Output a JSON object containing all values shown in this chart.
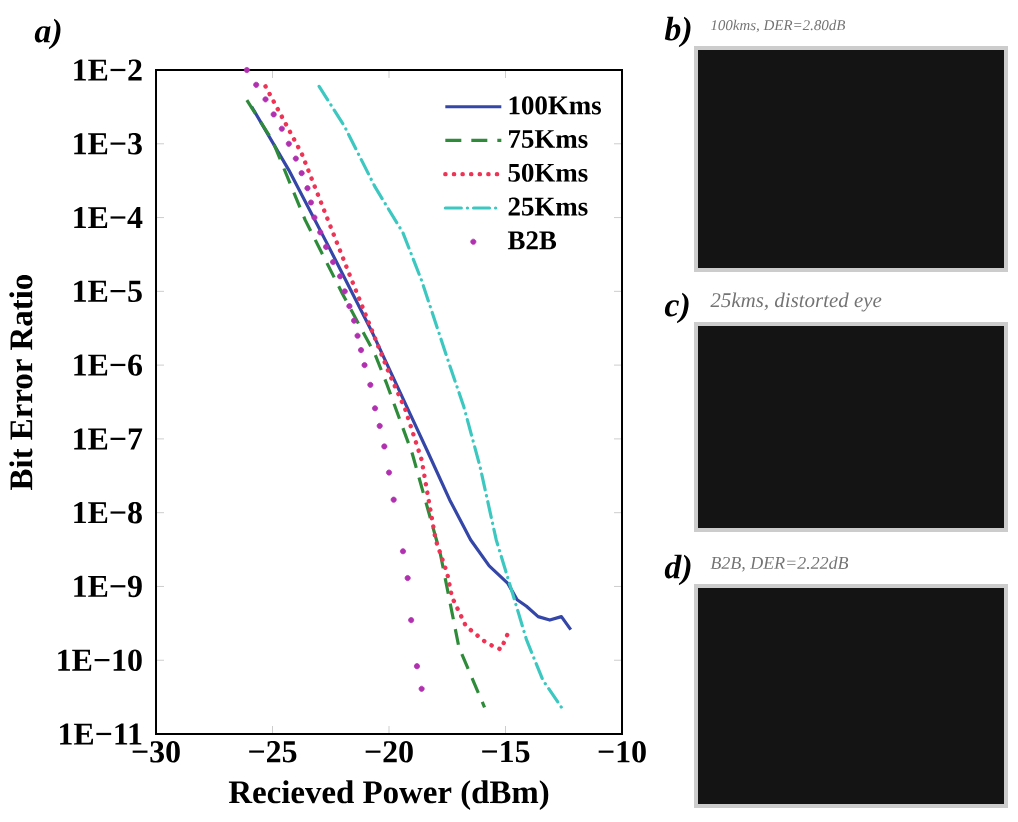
{
  "chart_data": {
    "type": "line",
    "xlabel": "Recieved Power (dBm)",
    "ylabel": "Bit Error Ratio",
    "annotations": [
      "a)",
      "b)",
      "100kms, DER=2.80dB",
      "c)",
      "25kms, distorted eye",
      "d)",
      "B2B, DER=2.22dB"
    ],
    "xlim": [
      -30,
      -10
    ],
    "xticks": [
      {
        "value": -30,
        "label": "−30"
      },
      {
        "value": -25,
        "label": "−25"
      },
      {
        "value": -20,
        "label": "−20"
      },
      {
        "value": -15,
        "label": "−15"
      },
      {
        "value": -10,
        "label": "−10"
      }
    ],
    "ylim": [
      1e-11,
      0.01
    ],
    "yticks": [
      {
        "value": 1e-11,
        "label": "1E−11"
      },
      {
        "value": 1e-10,
        "label": "1E−10"
      },
      {
        "value": 1e-09,
        "label": "1E−9"
      },
      {
        "value": 1e-08,
        "label": "1E−8"
      },
      {
        "value": 1e-07,
        "label": "1E−7"
      },
      {
        "value": 1e-06,
        "label": "1E−6"
      },
      {
        "value": 1e-05,
        "label": "1E−5"
      },
      {
        "value": 0.0001,
        "label": "1E−4"
      },
      {
        "value": 0.001,
        "label": "1E−3"
      },
      {
        "value": 0.01,
        "label": "1E−2"
      }
    ],
    "log": "y",
    "legend": "top right",
    "series": [
      {
        "name": "100Kms",
        "color": "#3446a8",
        "line_style": "solid",
        "marker": "none",
        "x": [
          -25.9,
          -24.3,
          -22.6,
          -20.7,
          -19.1,
          -18.3,
          -17.4,
          -16.5,
          -15.7,
          -14.9,
          -14.5,
          -14.1,
          -13.6,
          -13.1,
          -12.6,
          -12.2
        ],
        "values": [
          0.0032,
          0.00044,
          4.1e-05,
          2.7e-06,
          2.2e-07,
          6.3e-08,
          1.5e-08,
          4.3e-09,
          1.9e-09,
          1.1e-09,
          6.6e-10,
          5.4e-10,
          3.9e-10,
          3.5e-10,
          3.9e-10,
          2.6e-10
        ]
      },
      {
        "name": "75Kms",
        "color": "#2e8b3a",
        "line_style": "dashed",
        "marker": "none",
        "x": [
          -26.1,
          -25.0,
          -23.6,
          -22.0,
          -20.6,
          -20.1,
          -19.0,
          -17.8,
          -17.0,
          -15.9
        ],
        "values": [
          0.0039,
          0.0011,
          9.3e-05,
          9.3e-06,
          1.4e-06,
          5.6e-07,
          6.3e-08,
          2.8e-09,
          1.5e-10,
          2.3e-11
        ]
      },
      {
        "name": "50Kms",
        "color": "#ee3355",
        "line_style": "dotted",
        "marker": "none",
        "x": [
          -25.3,
          -23.75,
          -21.7,
          -20.0,
          -19.3,
          -18.6,
          -18.0,
          -17.5,
          -17.3,
          -16.7,
          -15.8,
          -15.2,
          -14.9
        ],
        "values": [
          0.006,
          0.00074,
          1.7e-05,
          7.8e-07,
          2.5e-07,
          5.2e-08,
          4.3e-09,
          1.5e-09,
          7.2e-10,
          2.9e-10,
          1.7e-10,
          1.4e-10,
          2.3e-10
        ]
      },
      {
        "name": "25Kms",
        "color": "#3cc8c0",
        "line_style": "dashdot",
        "marker": "none",
        "x": [
          -23.0,
          -21.9,
          -20.6,
          -19.4,
          -18.6,
          -17.4,
          -16.8,
          -16.1,
          -15.4,
          -14.7,
          -14.1,
          -13.4,
          -12.6
        ],
        "values": [
          0.006,
          0.0017,
          0.00026,
          6.2e-05,
          1.4e-05,
          1e-06,
          2.8e-07,
          4.3e-08,
          4.3e-09,
          8.1e-10,
          1.9e-10,
          5.4e-11,
          2.3e-11
        ]
      },
      {
        "name": "B2B",
        "type": "scatter",
        "color": "#b030b0",
        "marker": "circle",
        "x": [
          -26.1,
          -25.7,
          -25.3,
          -24.95,
          -24.6,
          -24.3,
          -24.0,
          -23.75,
          -23.5,
          -23.35,
          -23.2,
          -22.95,
          -22.7,
          -22.4,
          -22.1,
          -21.9,
          -21.7,
          -21.5,
          -21.35,
          -21.2,
          -21.05,
          -20.8,
          -20.6,
          -20.4,
          -20.2,
          -20.0,
          -19.8,
          -19.4,
          -19.2,
          -19.05,
          -18.8,
          -18.6
        ],
        "values": [
          0.01,
          0.0063,
          0.004,
          0.0025,
          0.0016,
          0.001,
          0.00063,
          0.0004,
          0.00025,
          0.00016,
          0.0001,
          6.3e-05,
          4e-05,
          2.5e-05,
          1.6e-05,
          1e-05,
          6.3e-06,
          4e-06,
          2.5e-06,
          1.6e-06,
          1e-06,
          5.4e-07,
          2.6e-07,
          1.5e-07,
          7.9e-08,
          3.5e-08,
          1.5e-08,
          3e-09,
          1.3e-09,
          3.5e-10,
          8.3e-11,
          4.1e-11
        ]
      }
    ]
  }
}
